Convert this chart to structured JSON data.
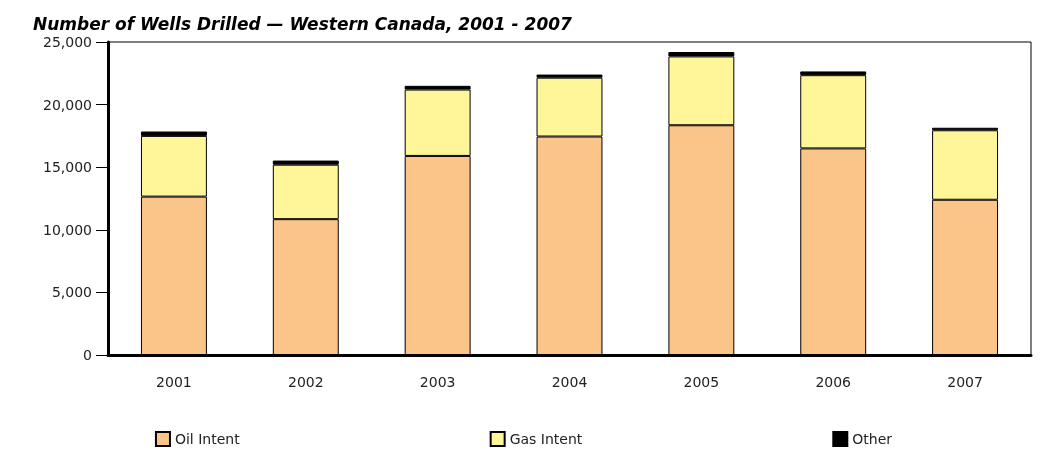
{
  "chart_data": {
    "type": "bar",
    "title": "Number of Wells Drilled — Western Canada, 2001 - 2007",
    "categories": [
      "2001",
      "2002",
      "2003",
      "2004",
      "2005",
      "2006",
      "2007"
    ],
    "stacked": true,
    "series": [
      {
        "name": "Oil Intent",
        "color": "#fbc58a",
        "values": [
          12650,
          10850,
          15900,
          17450,
          18350,
          16500,
          12400
        ]
      },
      {
        "name": "Gas Intent",
        "color": "#fff599",
        "values": [
          4850,
          4350,
          5300,
          4700,
          5500,
          5850,
          5550
        ]
      },
      {
        "name": "Other",
        "color": "#000000",
        "values": [
          350,
          330,
          300,
          250,
          350,
          300,
          200
        ]
      }
    ],
    "ylim": [
      0,
      25000
    ],
    "yticks": [
      0,
      {
        "value": 5000,
        "label": "5,000"
      },
      {
        "value": 10000,
        "label": "10,000"
      },
      {
        "value": 15000,
        "label": "15,000"
      },
      {
        "value": 20000,
        "label": "20,000"
      },
      {
        "value": 25000,
        "label": "25,000"
      }
    ],
    "grid": false,
    "legend": "bottom"
  }
}
